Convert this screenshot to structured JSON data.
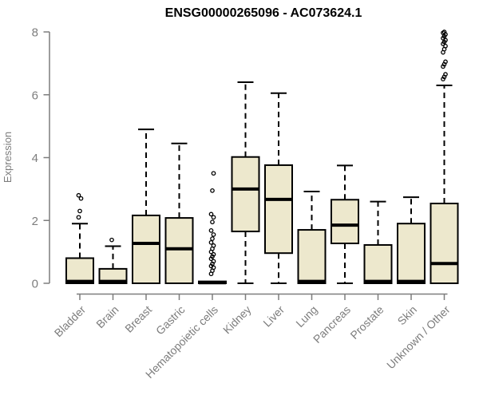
{
  "title": "ENSG00000265096 - AC073624.1",
  "chart_data": {
    "type": "boxplot",
    "title": "ENSG00000265096 - AC073624.1",
    "ylabel": "Expression",
    "xlabel": "",
    "ylim": [
      0,
      8
    ],
    "yticks": [
      0,
      2,
      4,
      6,
      8
    ],
    "grid": false,
    "box_fill": "#EDE8CD",
    "line_color": "#000000",
    "axis_color": "#7D7D7D",
    "categories": [
      "Bladder",
      "Brain",
      "Breast",
      "Gastric",
      "Hematopoietic cells",
      "Kidney",
      "Liver",
      "Lung",
      "Pancreas",
      "Prostate",
      "Skin",
      "Unknown / Other"
    ],
    "series": [
      {
        "category": "Bladder",
        "q1": 0,
        "median": 0.06,
        "q3": 0.8,
        "whisker_low": 0,
        "whisker_high": 1.9,
        "outliers": [
          2.1,
          2.3,
          2.7,
          2.8
        ]
      },
      {
        "category": "Brain",
        "q1": 0,
        "median": 0.06,
        "q3": 0.46,
        "whisker_low": 0,
        "whisker_high": 1.18,
        "outliers": [
          1.38
        ]
      },
      {
        "category": "Breast",
        "q1": 0,
        "median": 1.27,
        "q3": 2.16,
        "whisker_low": 0,
        "whisker_high": 4.9,
        "outliers": []
      },
      {
        "category": "Gastric",
        "q1": 0,
        "median": 1.1,
        "q3": 2.08,
        "whisker_low": 0,
        "whisker_high": 4.45,
        "outliers": []
      },
      {
        "category": "Hematopoietic cells",
        "q1": 0,
        "median": 0.02,
        "q3": 0.06,
        "whisker_low": 0,
        "whisker_high": 0.06,
        "outliers": [
          0.3,
          0.4,
          0.5,
          0.55,
          0.62,
          0.7,
          0.78,
          0.85,
          0.92,
          1.0,
          1.1,
          1.2,
          1.3,
          1.42,
          1.55,
          1.68,
          1.95,
          2.1,
          2.2,
          2.95,
          3.5
        ]
      },
      {
        "category": "Kidney",
        "q1": 1.65,
        "median": 3.0,
        "q3": 4.02,
        "whisker_low": 0,
        "whisker_high": 6.4,
        "outliers": []
      },
      {
        "category": "Liver",
        "q1": 0.96,
        "median": 2.67,
        "q3": 3.76,
        "whisker_low": 0,
        "whisker_high": 6.05,
        "outliers": []
      },
      {
        "category": "Lung",
        "q1": 0,
        "median": 0.06,
        "q3": 1.7,
        "whisker_low": 0,
        "whisker_high": 2.92,
        "outliers": []
      },
      {
        "category": "Pancreas",
        "q1": 1.27,
        "median": 1.85,
        "q3": 2.66,
        "whisker_low": 0,
        "whisker_high": 3.75,
        "outliers": []
      },
      {
        "category": "Prostate",
        "q1": 0,
        "median": 0.06,
        "q3": 1.22,
        "whisker_low": 0,
        "whisker_high": 2.6,
        "outliers": []
      },
      {
        "category": "Skin",
        "q1": 0,
        "median": 0.06,
        "q3": 1.9,
        "whisker_low": 0,
        "whisker_high": 2.74,
        "outliers": []
      },
      {
        "category": "Unknown / Other",
        "q1": 0,
        "median": 0.63,
        "q3": 2.54,
        "whisker_low": 0,
        "whisker_high": 6.3,
        "outliers": [
          6.5,
          6.57,
          6.65,
          6.9,
          6.97,
          7.05,
          7.35,
          7.45,
          7.55,
          7.62,
          7.68,
          7.74,
          7.8,
          7.86,
          7.92,
          7.97,
          8.0
        ]
      }
    ]
  }
}
